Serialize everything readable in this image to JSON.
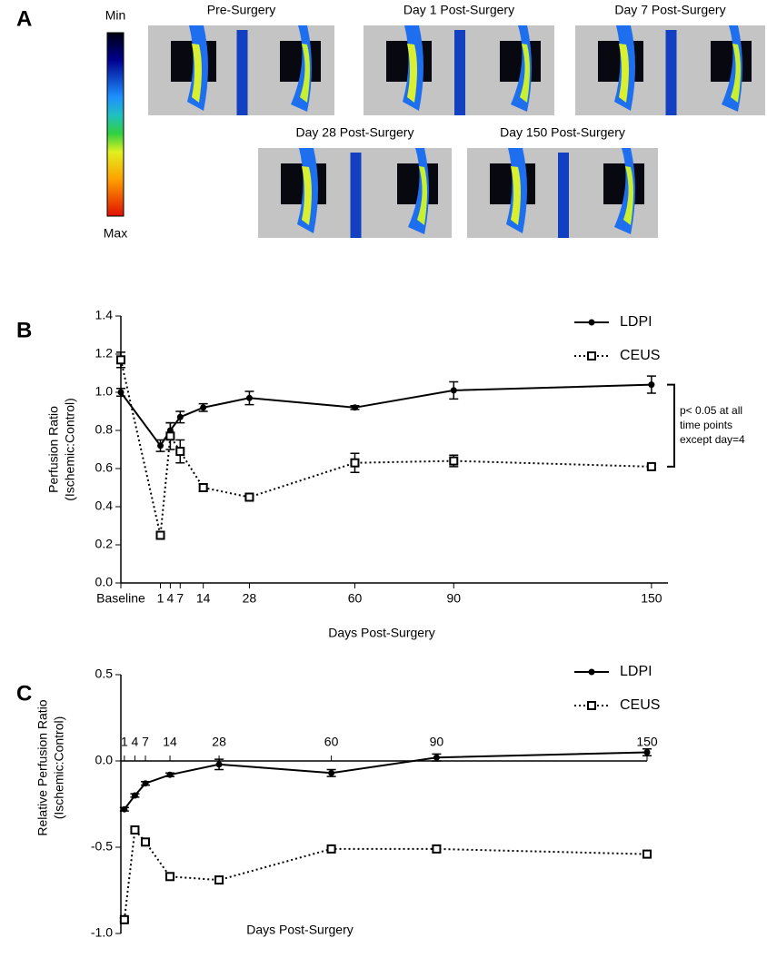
{
  "panel_a": {
    "label": "A",
    "scale_min": "Min",
    "scale_max": "Max",
    "images": [
      "Pre-Surgery",
      "Day 1 Post-Surgery",
      "Day 7 Post-Surgery",
      "Day 28 Post-Surgery",
      "Day 150 Post-Surgery"
    ]
  },
  "chart_data": [
    {
      "type": "line",
      "panel": "B",
      "x_label": "Days Post-Surgery",
      "y_label": [
        "Perfusion Ratio",
        "(Ischemic:Control)"
      ],
      "x": [
        -11,
        1,
        4,
        7,
        14,
        28,
        60,
        90,
        150
      ],
      "xlim": [
        -11,
        155
      ],
      "ylim": [
        0,
        1.4
      ],
      "xticks": [
        {
          "value": -11,
          "label": "Baseline"
        },
        1,
        4,
        7,
        14,
        28,
        60,
        90,
        150
      ],
      "yticks": [
        {
          "value": 0,
          "label": "0.0"
        },
        0.2,
        0.4,
        0.6,
        0.8,
        {
          "value": 1,
          "label": "1.0"
        },
        1.2,
        1.4
      ],
      "legend": "top-right",
      "series": [
        {
          "name": "LDPI",
          "color": "#000000",
          "dash": "solid",
          "marker": "circle",
          "values": [
            1.0,
            0.72,
            0.8,
            0.87,
            0.92,
            0.97,
            0.92,
            1.01,
            1.04
          ],
          "errors": [
            0.02,
            0.03,
            0.04,
            0.03,
            0.02,
            0.035,
            0.01,
            0.045,
            0.045
          ]
        },
        {
          "name": "CEUS",
          "color": "#000000",
          "dash": "dotted",
          "marker": "square",
          "values": [
            1.17,
            0.25,
            0.77,
            0.69,
            0.5,
            0.45,
            0.63,
            0.64,
            0.61
          ],
          "errors": [
            0.04,
            0.02,
            0.07,
            0.06,
            0.02,
            0.01,
            0.05,
            0.03,
            0.01
          ]
        }
      ],
      "annotation": [
        "p< 0.05 at all",
        "time points",
        "except day=4"
      ]
    },
    {
      "type": "line",
      "panel": "C",
      "x_label": "Days Post-Surgery",
      "y_label": [
        "Relative Perfusion Ratio",
        "(Ischemic:Control)"
      ],
      "x": [
        1,
        4,
        7,
        14,
        28,
        60,
        90,
        150
      ],
      "xlim": [
        0,
        150
      ],
      "ylim": [
        -1.0,
        0.5
      ],
      "xticks": [
        1,
        4,
        7,
        14,
        28,
        60,
        90,
        150
      ],
      "yticks": [
        {
          "value": -1,
          "label": "-1.0"
        },
        -0.5,
        {
          "value": 0,
          "label": "0.0"
        },
        0.5
      ],
      "legend": "top-right",
      "series": [
        {
          "name": "LDPI",
          "color": "#000000",
          "dash": "solid",
          "marker": "circle",
          "values": [
            -0.28,
            -0.2,
            -0.13,
            -0.08,
            -0.02,
            -0.07,
            0.02,
            0.05
          ],
          "errors": [
            0.01,
            0.01,
            0.01,
            0.01,
            0.03,
            0.02,
            0.02,
            0.02
          ]
        },
        {
          "name": "CEUS",
          "color": "#000000",
          "dash": "dotted",
          "marker": "square",
          "values": [
            -0.92,
            -0.4,
            -0.47,
            -0.67,
            -0.69,
            -0.51,
            -0.51,
            -0.54
          ],
          "errors": [
            0.01,
            0.01,
            0.01,
            0.01,
            0.02,
            0.01,
            0.02,
            0.02
          ]
        }
      ]
    }
  ]
}
